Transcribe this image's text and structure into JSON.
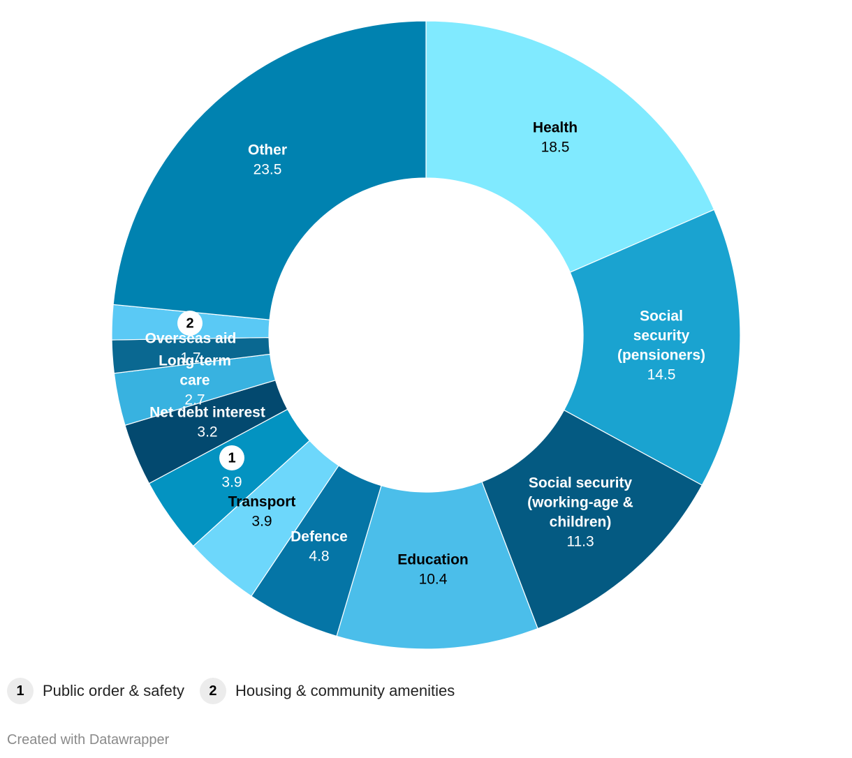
{
  "chart_data": {
    "type": "pie",
    "donut": true,
    "title": "",
    "slices": [
      {
        "name": "Health",
        "value": 18.5,
        "color": "#80eaff",
        "text_color": "#000000"
      },
      {
        "name": "Social security (pensioners)",
        "label_lines": [
          "Social",
          "security",
          "(pensioners)"
        ],
        "value": 14.5,
        "color": "#1aa3d0",
        "text_color": "#ffffff"
      },
      {
        "name": "Social security (working-age & children)",
        "label_lines": [
          "Social security",
          "(working-age &",
          "children)"
        ],
        "value": 11.3,
        "color": "#045a82",
        "text_color": "#ffffff"
      },
      {
        "name": "Education",
        "value": 10.4,
        "color": "#4bbeea",
        "text_color": "#000000"
      },
      {
        "name": "Defence",
        "value": 4.8,
        "color": "#0575a6",
        "text_color": "#ffffff"
      },
      {
        "name": "Transport",
        "value": 3.9,
        "color": "#6dd7fb",
        "text_color": "#000000"
      },
      {
        "name": "Public order & safety",
        "marker": "1",
        "value": 3.9,
        "color": "#0393c1",
        "text_color": "#ffffff"
      },
      {
        "name": "Net debt interest",
        "value": 3.2,
        "color": "#03496f",
        "text_color": "#ffffff"
      },
      {
        "name": "Long-term care",
        "label_lines": [
          "Long-term",
          "care"
        ],
        "value": 2.7,
        "color": "#38b2e0",
        "text_color": "#ffffff"
      },
      {
        "name": "Overseas aid",
        "value": 1.7,
        "color": "#0a6891",
        "text_color": "#ffffff"
      },
      {
        "name": "Housing & community amenities",
        "marker": "2",
        "value": 1.8,
        "color": "#5ac9f5",
        "text_color": "#ffffff"
      },
      {
        "name": "Other",
        "value": 23.5,
        "color": "#0082b0",
        "text_color": "#ffffff"
      }
    ],
    "value_labels": {
      "Health": "18.5",
      "Social security (pensioners)": "14.5",
      "Social security (working-age & children)": "11.3",
      "Education": "10.4",
      "Defence": "4.8",
      "Transport": "3.9",
      "Public order & safety": "3.9",
      "Net debt interest": "3.2",
      "Long-term care": "2.7",
      "Overseas aid": "1.7",
      "Other": "23.5"
    },
    "legend_placement": "bottom"
  },
  "legend": {
    "items": [
      {
        "marker": "1",
        "label": "Public order & safety"
      },
      {
        "marker": "2",
        "label": "Housing & community amenities"
      }
    ]
  },
  "footer": {
    "text": "Created with Datawrapper"
  }
}
